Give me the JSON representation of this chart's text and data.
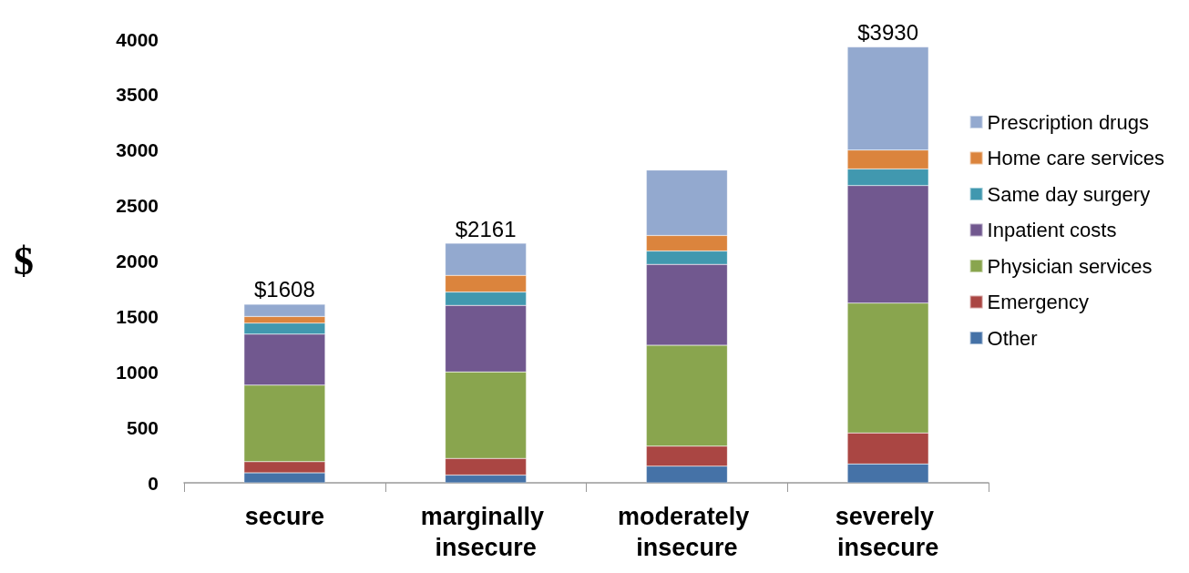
{
  "chart_data": {
    "type": "bar",
    "stacked": true,
    "ylabel": "$",
    "categories": [
      "secure",
      "marginally insecure",
      "moderately insecure",
      "severely insecure"
    ],
    "series": [
      {
        "name": "Other",
        "color": "#4572a7",
        "values": [
          90,
          70,
          150,
          170
        ]
      },
      {
        "name": "Emergency",
        "color": "#aa4643",
        "values": [
          100,
          150,
          180,
          280
        ]
      },
      {
        "name": "Physician services",
        "color": "#89a54e",
        "values": [
          690,
          780,
          910,
          1170
        ]
      },
      {
        "name": "Inpatient costs",
        "color": "#71588f",
        "values": [
          460,
          600,
          730,
          1060
        ]
      },
      {
        "name": "Same day surgery",
        "color": "#4198af",
        "values": [
          100,
          120,
          120,
          150
        ]
      },
      {
        "name": "Home care services",
        "color": "#db843d",
        "values": [
          60,
          150,
          140,
          170
        ]
      },
      {
        "name": "Prescription drugs",
        "color": "#93a9cf",
        "values": [
          110,
          290,
          590,
          930
        ]
      }
    ],
    "totals": [
      "$1608",
      "$2161",
      null,
      "$3930"
    ],
    "ylim": [
      0,
      4000
    ],
    "yticks": [
      0,
      500,
      1000,
      1500,
      2000,
      2500,
      3000,
      3500,
      4000
    ],
    "grid": false,
    "legend": "right"
  }
}
